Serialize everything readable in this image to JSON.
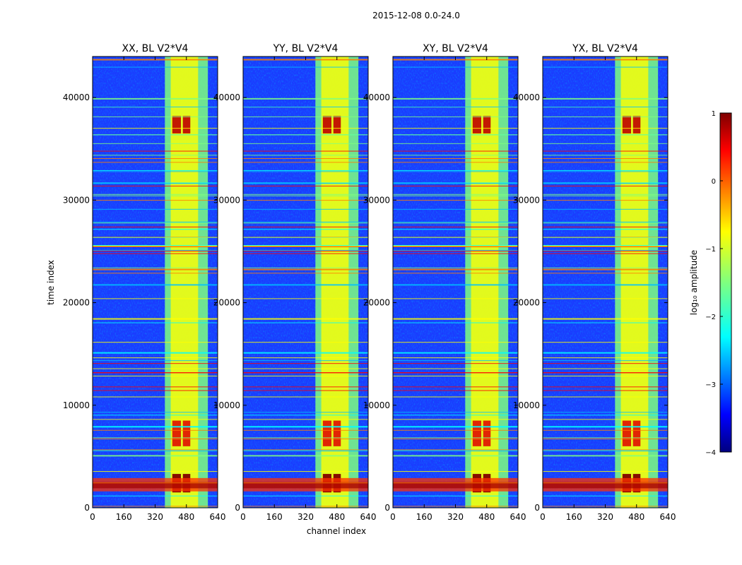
{
  "figure": {
    "suptitle": "2015-12-08 0.0-24.0"
  },
  "chart_data": [
    {
      "type": "heatmap",
      "title": "XX, BL V2*V4",
      "xlabel": "channel index",
      "ylabel": "time index",
      "xlim": [
        0,
        640
      ],
      "ylim": [
        0,
        44000
      ],
      "xticks": [
        0,
        160,
        320,
        480,
        640
      ],
      "yticks": [
        0,
        10000,
        20000,
        30000,
        40000
      ],
      "colormap": "jet",
      "value_range_log10": [
        -4,
        1
      ]
    },
    {
      "type": "heatmap",
      "title": "YY, BL V2*V4",
      "xlabel": "channel index",
      "ylabel": "",
      "xlim": [
        0,
        640
      ],
      "ylim": [
        0,
        44000
      ],
      "xticks": [
        0,
        160,
        320,
        480,
        640
      ],
      "yticks": [
        0,
        10000,
        20000,
        30000,
        40000
      ],
      "colormap": "jet",
      "value_range_log10": [
        -4,
        1
      ]
    },
    {
      "type": "heatmap",
      "title": "XY, BL V2*V4",
      "xlabel": "channel index",
      "ylabel": "",
      "xlim": [
        0,
        640
      ],
      "ylim": [
        0,
        44000
      ],
      "xticks": [
        0,
        160,
        320,
        480,
        640
      ],
      "yticks": [
        0,
        10000,
        20000,
        30000,
        40000
      ],
      "colormap": "jet",
      "value_range_log10": [
        -4,
        1
      ]
    },
    {
      "type": "heatmap",
      "title": "YX, BL V2*V4",
      "xlabel": "channel index",
      "ylabel": "",
      "xlim": [
        0,
        640
      ],
      "ylim": [
        0,
        44000
      ],
      "xticks": [
        0,
        160,
        320,
        480,
        640
      ],
      "yticks": [
        0,
        10000,
        20000,
        30000,
        40000
      ],
      "colormap": "jet",
      "value_range_log10": [
        -4,
        1
      ]
    }
  ],
  "colorbar": {
    "label": "log₁₀ amplitude",
    "ticks": [
      1,
      0,
      -1,
      -2,
      -3,
      -4
    ],
    "tick_labels": [
      "1",
      "0",
      "−1",
      "−2",
      "−3",
      "−4"
    ],
    "range": [
      -4,
      1
    ],
    "colormap": "jet"
  },
  "colors": {
    "jet_stops": [
      "#00007f",
      "#0000ff",
      "#007fff",
      "#00ffff",
      "#7fff7f",
      "#ffff00",
      "#ff7f00",
      "#ff0000",
      "#7f0000"
    ]
  }
}
